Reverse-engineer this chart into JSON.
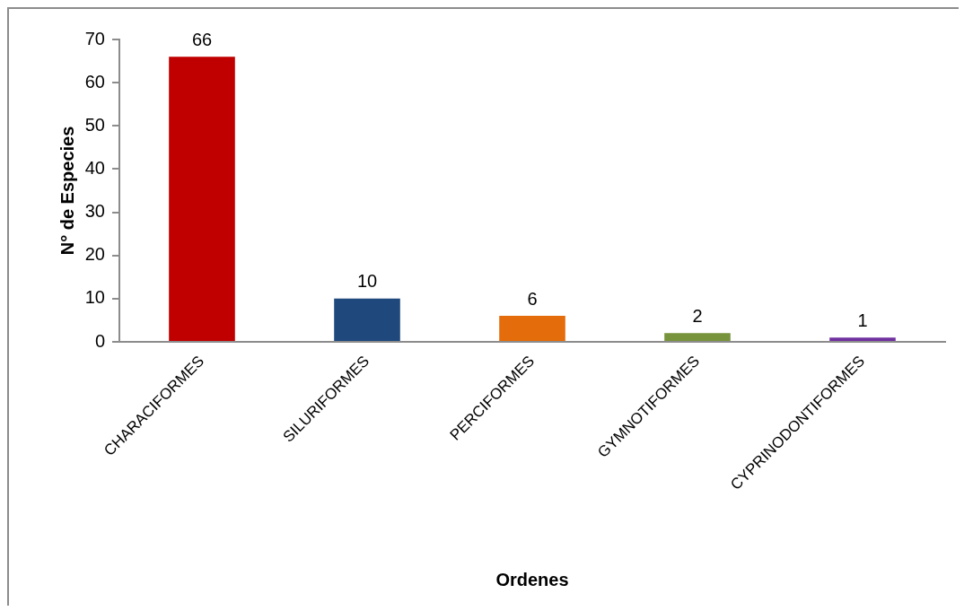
{
  "chart_data": {
    "type": "bar",
    "xlabel": "Ordenes",
    "ylabel": "N° de Especies",
    "categories": [
      "CHARACIFORMES",
      "SILURIFORMES",
      "PERCIFORMES",
      "GYMNOTIFORMES",
      "CYPRINODONTIFORMES"
    ],
    "values": [
      66,
      10,
      6,
      2,
      1
    ],
    "colors": [
      "#c00000",
      "#1f497d",
      "#e46c0a",
      "#77933c",
      "#7030a0"
    ],
    "ylim": [
      0,
      70
    ],
    "yticks": [
      0,
      10,
      20,
      30,
      40,
      50,
      60,
      70
    ],
    "data_labels": true,
    "grid": false,
    "legend": false
  }
}
